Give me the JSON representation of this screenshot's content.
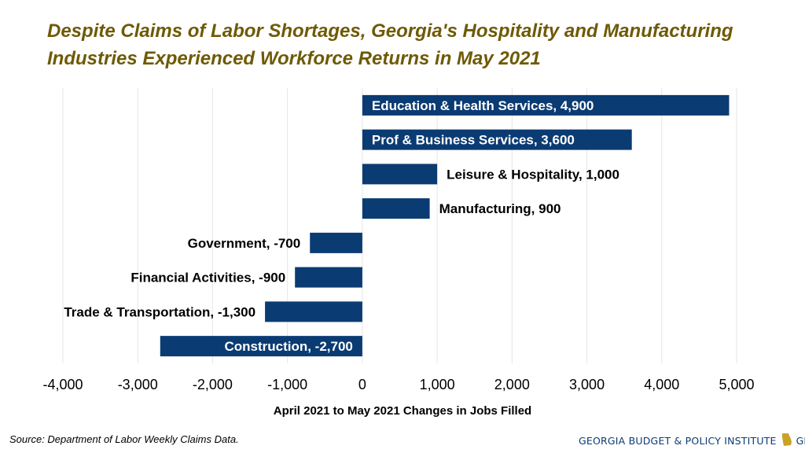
{
  "title_line1": "Despite Claims of Labor Shortages, Georgia's Hospitality and Manufacturing",
  "title_line2": "Industries Experienced Workforce Returns in May 2021",
  "source": "Source: Department of Labor Weekly Claims Data.",
  "brand": {
    "org": "GEORGIA BUDGET & POLICY INSTITUTE",
    "site": "GBPI.org",
    "color": "#0b3b73",
    "map_color": "#c9a227"
  },
  "colors": {
    "title": "#6e5a06",
    "bar": "#0b3b73",
    "grid": "#e6e6e6"
  },
  "chart_data": {
    "type": "bar",
    "orientation": "horizontal",
    "xlabel": "April 2021 to May 2021 Changes in Jobs Filled",
    "ylabel": "",
    "xlim": [
      -4000,
      5000
    ],
    "xticks": [
      "-4,000",
      "-3,000",
      "-2,000",
      "-1,000",
      "0",
      "1,000",
      "2,000",
      "3,000",
      "4,000",
      "5,000"
    ],
    "xtick_values": [
      -4000,
      -3000,
      -2000,
      -1000,
      0,
      1000,
      2000,
      3000,
      4000,
      5000
    ],
    "grid": "vertical",
    "categories": [
      "Education & Health Services",
      "Prof & Business Services",
      "Leisure & Hospitality",
      "Manufacturing",
      "Government",
      "Financial Activities",
      "Trade & Transportation",
      "Construction"
    ],
    "values": [
      4900,
      3600,
      1000,
      900,
      -700,
      -900,
      -1300,
      -2700
    ],
    "labels": [
      "Education & Health Services, 4,900",
      "Prof & Business Services, 3,600",
      "Leisure & Hospitality, 1,000",
      "Manufacturing, 900",
      "Government, -700",
      "Financial Activities, -900",
      "Trade & Transportation, -1,300",
      "Construction, -2,700"
    ],
    "label_inside": [
      true,
      true,
      false,
      false,
      false,
      false,
      false,
      true
    ]
  }
}
